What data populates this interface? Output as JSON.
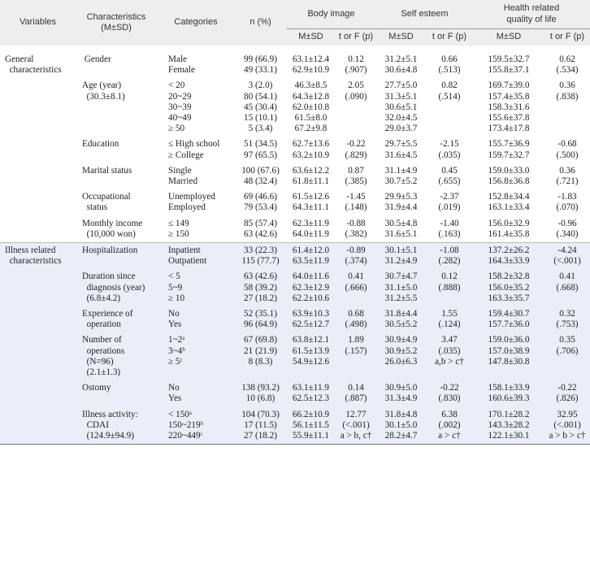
{
  "header": {
    "variables": "Variables",
    "characteristics": "Characteristics\n(M±SD)",
    "categories": "Categories",
    "n_pct": "n (%)",
    "body_image": "Body image",
    "self_esteem": "Self esteem",
    "hrqol": "Health related\nquality of life",
    "msd": "M±SD",
    "tf": "t or F (p)"
  },
  "sections": [
    {
      "label": "General\n  characteristics",
      "groups": [
        {
          "char": " Gender",
          "cat": "Male\nFemale",
          "n": "99 (66.9)\n49 (33.1)",
          "bi_m": "63.1±12.4\n62.9±10.9",
          "bi_t": "0.12\n(.907)",
          "se_m": "31.2±5.1\n30.6±4.8",
          "se_t": "0.66\n(.513)",
          "ql_m": "159.5±32.7\n155.8±37.1",
          "ql_t": "0.62\n(.534)"
        },
        {
          "char": "Age (year)\n  (30.3±8.1)",
          "cat": "< 20\n20~29\n30~39\n40~49\n≥ 50",
          "n": "3 (2.0)\n80 (54.1)\n45 (30.4)\n15 (10.1)\n5 (3.4)",
          "bi_m": "46.3±8.5\n64.3±12.8\n62.0±10.8\n61.5±8.0\n67.2±9.8",
          "bi_t": "2.05\n(.090)",
          "se_m": "27.7±5.0\n31.3±5.1\n30.6±5.1\n32.0±4.5\n29.0±3.7",
          "se_t": "0.82\n(.514)",
          "ql_m": "169.7±39.0\n157.4±35.8\n158.3±31.6\n155.6±37.8\n173.4±17.8",
          "ql_t": "0.36\n(.838)"
        },
        {
          "char": "Education",
          "cat": "≤ High school\n≥ College",
          "n": "51 (34.5)\n97 (65.5)",
          "bi_m": "62.7±13.6\n63.2±10.9",
          "bi_t": "-0.22\n(.829)",
          "se_m": "29.7±5.5\n31.6±4.5",
          "se_t": "-2.15\n(.035)",
          "ql_m": "155.7±36.9\n159.7±32.7",
          "ql_t": "-0.68\n(.500)"
        },
        {
          "char": "Marital status",
          "cat": "Single\nMarried",
          "n": "100 (67.6)\n48 (32.4)",
          "bi_m": "63.6±12.2\n61.8±11.1",
          "bi_t": "0.87\n(.385)",
          "se_m": "31.1±4.9\n30.7±5.2",
          "se_t": "0.45\n(.655)",
          "ql_m": "159.0±33.0\n156.8±36.8",
          "ql_t": "0.36\n(.721)"
        },
        {
          "char": "Occupational\n  status",
          "cat": "Unemployed\nEmployed",
          "n": "69 (46.6)\n79 (53.4)",
          "bi_m": "61.5±12.6\n64.3±11.1",
          "bi_t": "-1.45\n(.148)",
          "se_m": "29.9±5.3\n31.9±4.4",
          "se_t": "-2.37\n(.019)",
          "ql_m": "152.8±34.4\n163.1±33.4",
          "ql_t": "-1.83\n(.070)"
        },
        {
          "char": "Monthly income\n  (10,000 won)",
          "cat": "≤ 149\n≥ 150",
          "n": "85 (57.4)\n63 (42.6)",
          "bi_m": "62.3±11.9\n64.0±11.9",
          "bi_t": "-0.88\n(.382)",
          "se_m": "30.5±4.8\n31.6±5.1",
          "se_t": "-1.40\n(.163)",
          "ql_m": "156.0±32.9\n161.4±35.8",
          "ql_t": "-0.96\n(.340)"
        }
      ]
    },
    {
      "label": "Illness related\n  characteristics",
      "groups": [
        {
          "char": "Hospitalization",
          "cat": "Inpatient\nOutpatient",
          "n": "33 (22.3)\n115 (77.7)",
          "bi_m": "61.4±12.0\n63.5±11.9",
          "bi_t": "-0.89\n(.374)",
          "se_m": "30.1±5.1\n31.2±4.9",
          "se_t": "-1.08\n(.282)",
          "ql_m": "137.2±26.2\n164.3±33.9",
          "ql_t": "-4.24\n(<.001)"
        },
        {
          "char": "Duration since\n  diagnosis (year)\n  (6.8±4.2)",
          "cat": "< 5\n5~9\n≥ 10",
          "n": "63 (42.6)\n58 (39.2)\n27 (18.2)",
          "bi_m": "64.0±11.6\n62.3±12.9\n62.2±10.6",
          "bi_t": "0.41\n(.666)",
          "se_m": "30.7±4.7\n31.1±5.0\n31.2±5.5",
          "se_t": "0.12\n(.888)",
          "ql_m": "158.2±32.8\n156.0±35.2\n163.3±35.7",
          "ql_t": "0.41\n(.668)"
        },
        {
          "char": "Experience of\n  operation",
          "cat": "No\nYes",
          "n": "52 (35.1)\n96 (64.9)",
          "bi_m": "63.9±10.3\n62.5±12.7",
          "bi_t": "0.68\n(.498)",
          "se_m": "31.8±4.4\n30.5±5.2",
          "se_t": "1.55\n(.124)",
          "ql_m": "159.4±30.7\n157.7±36.0",
          "ql_t": "0.32\n(.753)"
        },
        {
          "char": "Number of\n  operations\n  (N=96)\n  (2.1±1.3)",
          "cat": "1~2ᵃ\n3~4ᵇ\n≥ 5ᶜ",
          "n": "67 (69.8)\n21 (21.9)\n8 (8.3)",
          "bi_m": "63.8±12.1\n61.5±13.9\n54.9±12.6",
          "bi_t": "1.89\n(.157)",
          "se_m": "30.9±4.9\n30.9±5.2\n26.0±6.3",
          "se_t": "3.47\n(.035)\na,b > c†",
          "ql_m": "159.0±36.0\n157.0±38.9\n147.8±30.8",
          "ql_t": "0.35\n(.706)"
        },
        {
          "char": "Ostomy",
          "cat": "No\nYes",
          "n": "138 (93.2)\n10 (6.8)",
          "bi_m": "63.1±11.9\n62.5±12.3",
          "bi_t": "0.14\n(.887)",
          "se_m": "30.9±5.0\n31.3±4.9",
          "se_t": "-0.22\n(.830)",
          "ql_m": "158.1±33.9\n160.6±39.3",
          "ql_t": "-0.22\n(.826)"
        },
        {
          "char": "Illness activity:\n  CDAI\n  (124.9±94.9)",
          "cat": "< 150ᵃ\n150~219ᵇ\n220~449ᶜ",
          "n": "104 (70.3)\n17 (11.5)\n27 (18.2)",
          "bi_m": "66.2±10.9\n56.1±11.5\n55.9±11.1",
          "bi_t": "12.77\n(<.001)\na > b, c†",
          "se_m": "31.8±4.8\n30.1±5.0\n28.2±4.7",
          "se_t": "6.38\n(.002)\na > c†",
          "ql_m": "170.1±28.2\n143.3±28.2\n122.1±30.1",
          "ql_t": "32.95\n(<.001)\na > b > c†"
        }
      ]
    }
  ]
}
